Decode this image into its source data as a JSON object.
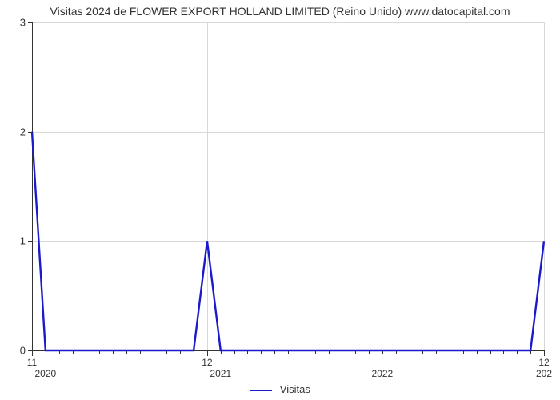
{
  "title": "Visitas 2024 de FLOWER EXPORT HOLLAND LIMITED (Reino Unido) www.datocapital.com",
  "chart": {
    "type": "line",
    "series_name": "Visitas",
    "line_color": "#1a1acc",
    "line_width": 2.4,
    "background_color": "#ffffff",
    "grid_color": "#d8d8d8",
    "axis_color": "#333333",
    "title_fontsize": 14,
    "label_fontsize": 13,
    "y": {
      "min": 0,
      "max": 3,
      "ticks": [
        0,
        1,
        2,
        3
      ]
    },
    "x": {
      "min": 0,
      "max": 38,
      "major_ticks": [
        {
          "x": 0,
          "label": "11"
        },
        {
          "x": 13,
          "label": "12"
        },
        {
          "x": 38,
          "label": "12"
        }
      ],
      "year_labels": [
        {
          "x": 1,
          "label": "2020"
        },
        {
          "x": 14,
          "label": "2021"
        },
        {
          "x": 26,
          "label": "2022"
        },
        {
          "x": 38,
          "label": "202"
        }
      ],
      "minor_tick_positions": [
        1,
        2,
        3,
        4,
        5,
        6,
        7,
        8,
        9,
        10,
        11,
        12,
        14,
        15,
        16,
        17,
        18,
        19,
        20,
        21,
        22,
        23,
        24,
        25,
        26,
        27,
        28,
        29,
        30,
        31,
        32,
        33,
        34,
        35,
        36,
        37
      ]
    },
    "data": [
      {
        "x": 0,
        "y": 2.0
      },
      {
        "x": 1,
        "y": 0.0
      },
      {
        "x": 2,
        "y": 0.0
      },
      {
        "x": 3,
        "y": 0.0
      },
      {
        "x": 4,
        "y": 0.0
      },
      {
        "x": 5,
        "y": 0.0
      },
      {
        "x": 6,
        "y": 0.0
      },
      {
        "x": 7,
        "y": 0.0
      },
      {
        "x": 8,
        "y": 0.0
      },
      {
        "x": 9,
        "y": 0.0
      },
      {
        "x": 10,
        "y": 0.0
      },
      {
        "x": 11,
        "y": 0.0
      },
      {
        "x": 12,
        "y": 0.0
      },
      {
        "x": 13,
        "y": 1.0
      },
      {
        "x": 14,
        "y": 0.0
      },
      {
        "x": 15,
        "y": 0.0
      },
      {
        "x": 16,
        "y": 0.0
      },
      {
        "x": 17,
        "y": 0.0
      },
      {
        "x": 18,
        "y": 0.0
      },
      {
        "x": 19,
        "y": 0.0
      },
      {
        "x": 20,
        "y": 0.0
      },
      {
        "x": 21,
        "y": 0.0
      },
      {
        "x": 22,
        "y": 0.0
      },
      {
        "x": 23,
        "y": 0.0
      },
      {
        "x": 24,
        "y": 0.0
      },
      {
        "x": 25,
        "y": 0.0
      },
      {
        "x": 26,
        "y": 0.0
      },
      {
        "x": 27,
        "y": 0.0
      },
      {
        "x": 28,
        "y": 0.0
      },
      {
        "x": 29,
        "y": 0.0
      },
      {
        "x": 30,
        "y": 0.0
      },
      {
        "x": 31,
        "y": 0.0
      },
      {
        "x": 32,
        "y": 0.0
      },
      {
        "x": 33,
        "y": 0.0
      },
      {
        "x": 34,
        "y": 0.0
      },
      {
        "x": 35,
        "y": 0.0
      },
      {
        "x": 36,
        "y": 0.0
      },
      {
        "x": 37,
        "y": 0.0
      },
      {
        "x": 38,
        "y": 1.0
      }
    ]
  },
  "legend": {
    "label": "Visitas"
  }
}
